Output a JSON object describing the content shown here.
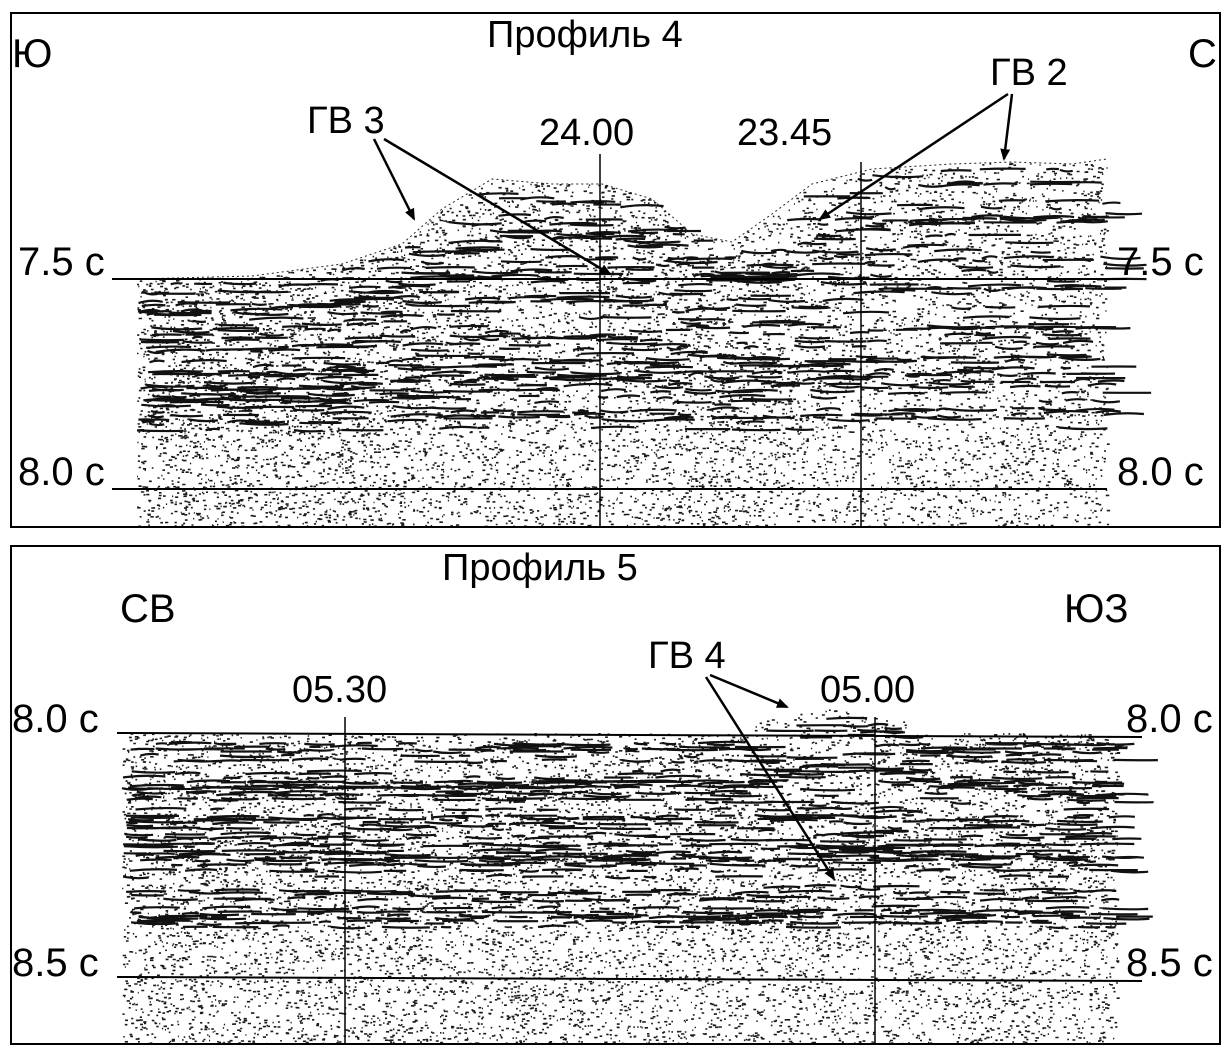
{
  "figure": {
    "profile4": {
      "title": "Профиль 4",
      "dir_left": "Ю",
      "dir_right": "С",
      "time_top": "7.5 с",
      "time_bottom": "8.0 с",
      "mark_a": "24.00",
      "mark_b": "23.45",
      "label_a": "ГВ 3",
      "label_b": "ГВ 2"
    },
    "profile5": {
      "title": "Профиль 5",
      "dir_left": "СВ",
      "dir_right": "ЮЗ",
      "time_top": "8.0 с",
      "time_bottom": "8.5 с",
      "mark_a": "05.30",
      "mark_b": "05.00",
      "label_a": "ГВ 4"
    }
  }
}
